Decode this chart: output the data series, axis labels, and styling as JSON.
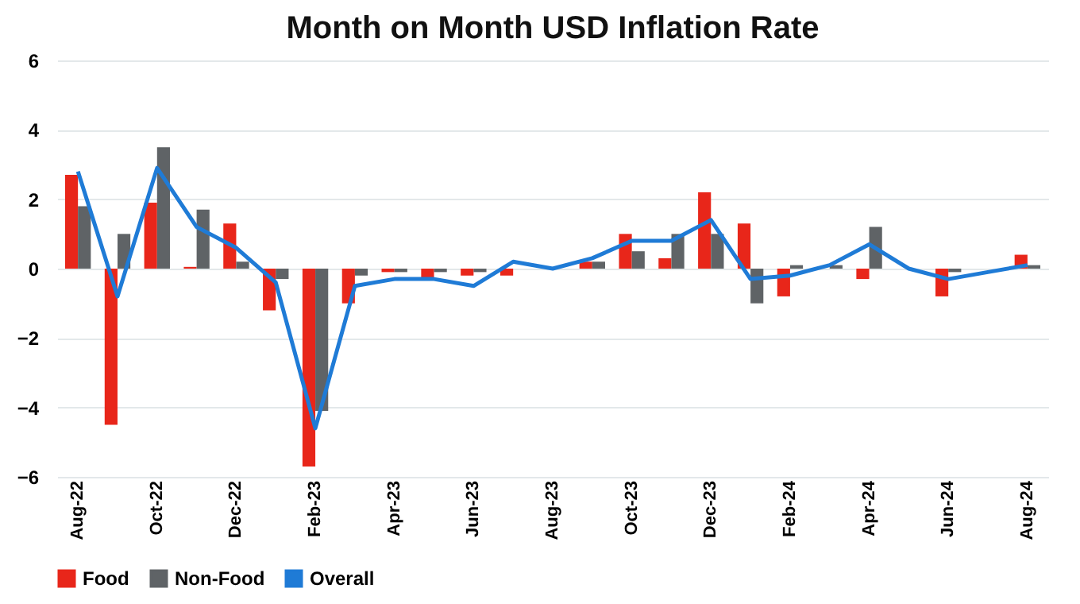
{
  "chart_data": {
    "type": "bar",
    "title": "Month on Month USD Inflation Rate",
    "categories": [
      "Aug-22",
      null,
      "Oct-22",
      null,
      "Dec-22",
      null,
      "Feb-23",
      null,
      "Apr-23",
      null,
      "Jun-23",
      null,
      "Aug-23",
      null,
      "Oct-23",
      null,
      "Dec-23",
      null,
      "Feb-24",
      null,
      "Apr-24",
      null,
      "Jun-24",
      null,
      "Aug-24"
    ],
    "series": [
      {
        "name": "Food",
        "color": "#e8261a",
        "values": [
          2.7,
          -4.5,
          1.9,
          0.05,
          1.3,
          -1.2,
          -5.7,
          -1.0,
          -0.1,
          -0.3,
          -0.2,
          -0.2,
          0.0,
          0.2,
          1.0,
          0.3,
          2.2,
          1.3,
          -0.8,
          0.0,
          -0.3,
          0.0,
          -0.8,
          0.0,
          0.4
        ]
      },
      {
        "name": "Non-Food",
        "color": "#5f6366",
        "values": [
          1.8,
          1.0,
          3.5,
          1.7,
          0.2,
          -0.3,
          -4.1,
          -0.2,
          -0.1,
          -0.1,
          -0.1,
          0.0,
          0.0,
          0.2,
          0.5,
          1.0,
          1.0,
          -1.0,
          0.1,
          0.1,
          1.2,
          0.0,
          -0.1,
          0.0,
          0.1
        ]
      },
      {
        "name": "Overall",
        "type": "line",
        "color": "#1f7bd6",
        "values": [
          2.8,
          -0.8,
          2.9,
          1.2,
          0.6,
          -0.4,
          -4.6,
          -0.5,
          -0.3,
          -0.3,
          -0.5,
          0.2,
          0.0,
          0.3,
          0.8,
          0.8,
          1.4,
          -0.3,
          -0.2,
          0.1,
          0.7,
          0.0,
          -0.3,
          -0.1,
          0.1
        ]
      }
    ],
    "ylim": [
      -6,
      6
    ],
    "yticks": [
      -6,
      -4,
      -2,
      0,
      2,
      4,
      6
    ],
    "grid": "y",
    "legend": "bottom",
    "marker": "none"
  }
}
